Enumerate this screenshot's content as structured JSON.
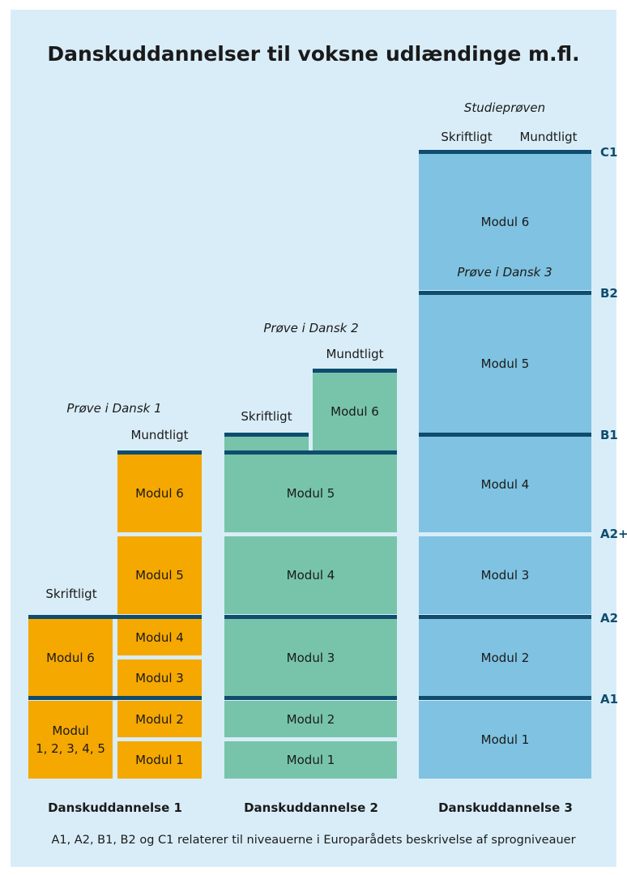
{
  "title": "Danskuddannelser til voksne udlændinge m.fl.",
  "colors": {
    "du1": "#f5a800",
    "du2": "#77c4aa",
    "du3": "#7fc2e1",
    "bar": "#0f4c6e",
    "bg": "#d9edf8"
  },
  "du1": {
    "name": "Danskuddannelse 1",
    "exam": "Prøve i Dansk 1",
    "written_label": "Skriftligt",
    "oral_label": "Mundtligt",
    "left": {
      "top": "Modul 6",
      "bottom": "Modul\n1, 2, 3, 4, 5"
    },
    "right": [
      "Modul 6",
      "Modul 5",
      "Modul 4",
      "Modul 3",
      "Modul 2",
      "Modul 1"
    ]
  },
  "du2": {
    "name": "Danskuddannelse 2",
    "exam": "Prøve i Dansk 2",
    "written_label": "Skriftligt",
    "oral_label": "Mundtligt",
    "modules": [
      "Modul 6",
      "Modul 5",
      "Modul 4",
      "Modul 3",
      "Modul 2",
      "Modul 1"
    ]
  },
  "du3": {
    "name": "Danskuddannelse 3",
    "exam_top": "Studieprøven",
    "exam_mid": "Prøve i Dansk 3",
    "written_label": "Skriftligt",
    "oral_label": "Mundtligt",
    "modules": [
      "Modul 6",
      "Modul 5",
      "Modul 4",
      "Modul 3",
      "Modul 2",
      "Modul 1"
    ]
  },
  "levels": [
    "C1",
    "B2",
    "B1",
    "A2+",
    "A2",
    "A1"
  ],
  "footnote": "A1, A2, B1, B2 og C1 relaterer til niveauerne i Europarådets beskrivelse af sprogniveauer"
}
